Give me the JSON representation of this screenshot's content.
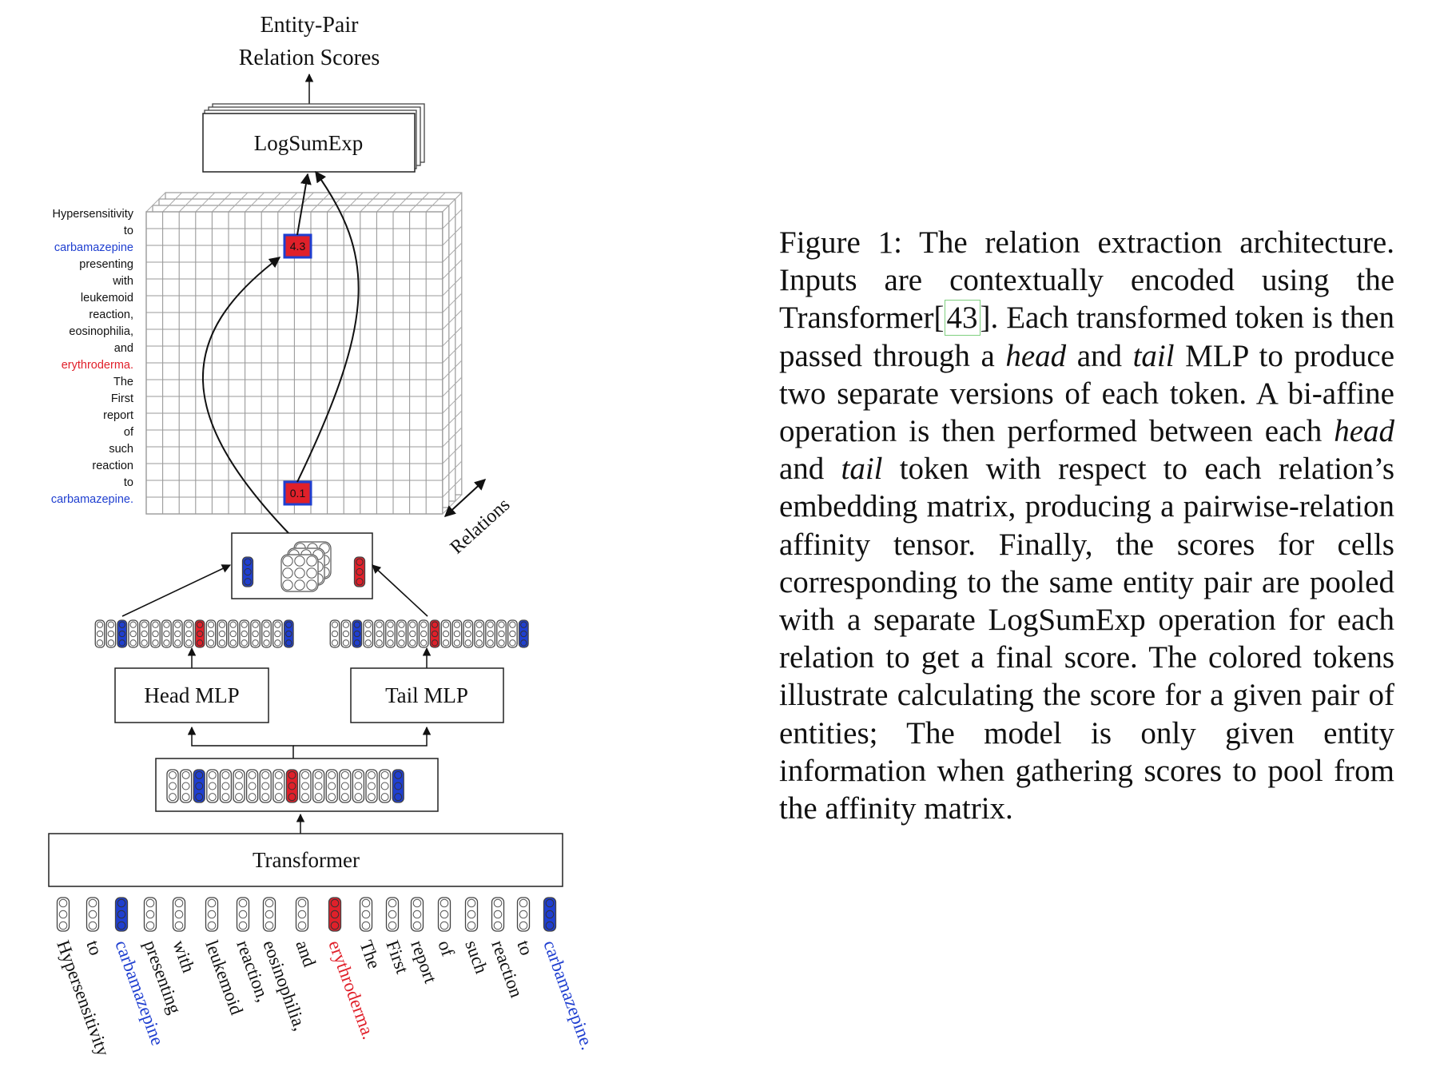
{
  "figure": {
    "output_label_line1": "Entity-Pair",
    "output_label_line2": "Relation Scores",
    "logsumexp_label": "LogSumExp",
    "relations_label": "Relations",
    "head_mlp_label": "Head MLP",
    "tail_mlp_label": "Tail MLP",
    "transformer_label": "Transformer",
    "score_high": "4.3",
    "score_low": "0.1",
    "tokens": [
      "Hypersensitivity",
      "to",
      "carbamazepine",
      "presenting",
      "with",
      "leukemoid",
      "reaction,",
      "eosinophilia,",
      "and",
      "erythroderma.",
      "The",
      "First",
      "report",
      "of",
      "such",
      "reaction",
      "to",
      "carbamazepine."
    ],
    "token_entity": [
      "none",
      "none",
      "head",
      "none",
      "none",
      "none",
      "none",
      "none",
      "none",
      "tail",
      "none",
      "none",
      "none",
      "none",
      "none",
      "none",
      "none",
      "head"
    ],
    "colors": {
      "head": "#1f3fd0",
      "tail": "#e0202a",
      "head_text": "#1f3fd0",
      "tail_text": "#e0202a",
      "grid": "#9a9a9a"
    }
  },
  "caption": {
    "figure_label": "Figure 1:",
    "p1": " The relation extraction architecture. Inputs are contextually encoded using the Transformer",
    "cite": "43",
    "p2": ". Each transformed token is then passed through a ",
    "head": "head",
    "p3": " and ",
    "tail": "tail",
    "p4": " MLP to produce two separate versions of each token. A bi-affine operation is then performed between each ",
    "head2": "head",
    "p5": " and ",
    "tail2": "tail",
    "p6": " token with respect to each relation’s embedding matrix, producing a pairwise-relation affinity tensor. Finally, the scores for cells corresponding to the same entity pair are pooled with a separate LogSumExp operation for each relation to get a final score. The colored tokens illustrate calculating the score for a given pair of entities; The model is only given entity information when gathering scores to pool from the affinity matrix."
  }
}
